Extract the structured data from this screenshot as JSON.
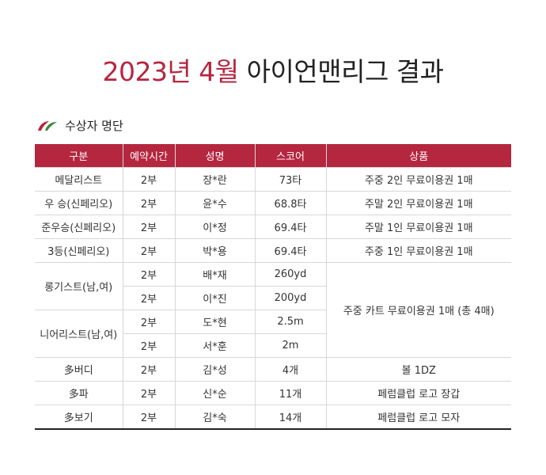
{
  "title": {
    "accent": "2023년 4월",
    "rest": "아이언맨리그 결과"
  },
  "section": {
    "label": "수상자 명단",
    "icon": "leaf-icon",
    "icon_colors": [
      "#b5263f",
      "#3a8a3a"
    ]
  },
  "colors": {
    "accent": "#b5263f",
    "border": "#d7d7d7"
  },
  "table": {
    "headers": [
      "구분",
      "예약시간",
      "성명",
      "스코어",
      "상품"
    ],
    "rows": [
      [
        "메달리스트",
        "2부",
        "장*란",
        "73타",
        "주중 2인 무료이용권 1매"
      ],
      [
        "우 승(신페리오)",
        "2부",
        "윤*수",
        "68.8타",
        "주말 2인 무료이용권 1매"
      ],
      [
        "준우승(신페리오)",
        "2부",
        "이*정",
        "69.4타",
        "주말 1인 무료이용권 1매"
      ],
      [
        "3등(신페리오)",
        "2부",
        "박*용",
        "69.4타",
        "주중 1인 무료이용권 1매"
      ],
      [
        "롱기스트(남,여)",
        "2부",
        "배*재",
        "260yd",
        "주중 카트 무료이용권 1매 (총 4매)"
      ],
      [
        "",
        "2부",
        "이*진",
        "200yd",
        ""
      ],
      [
        "니어리스트(남,여)",
        "2부",
        "도*현",
        "2.5m",
        ""
      ],
      [
        "",
        "2부",
        "서*훈",
        "2m",
        ""
      ],
      [
        "多버디",
        "2부",
        "김*성",
        "4개",
        "볼 1DZ"
      ],
      [
        "多파",
        "2부",
        "신*순",
        "11개",
        "페럼클럽 로고 장갑"
      ],
      [
        "多보기",
        "2부",
        "김*숙",
        "14개",
        "페럼클럽 로고 모자"
      ]
    ]
  }
}
